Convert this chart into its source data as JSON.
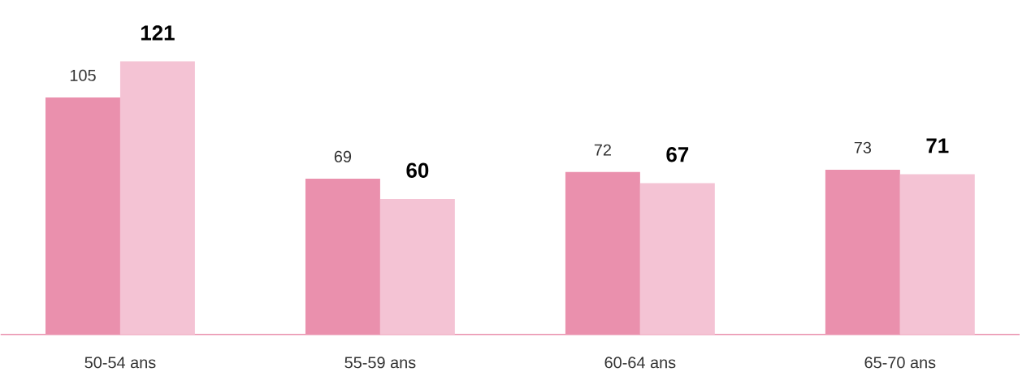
{
  "chart_data": {
    "type": "bar",
    "categories": [
      "50-54 ans",
      "55-59 ans",
      "60-64 ans",
      "65-70 ans"
    ],
    "series": [
      {
        "color": "#ea90ad",
        "values": [
          105,
          69,
          72,
          73
        ]
      },
      {
        "color": "#f4c3d4",
        "values": [
          121,
          60,
          67,
          71
        ]
      }
    ],
    "data_labels": true
  }
}
